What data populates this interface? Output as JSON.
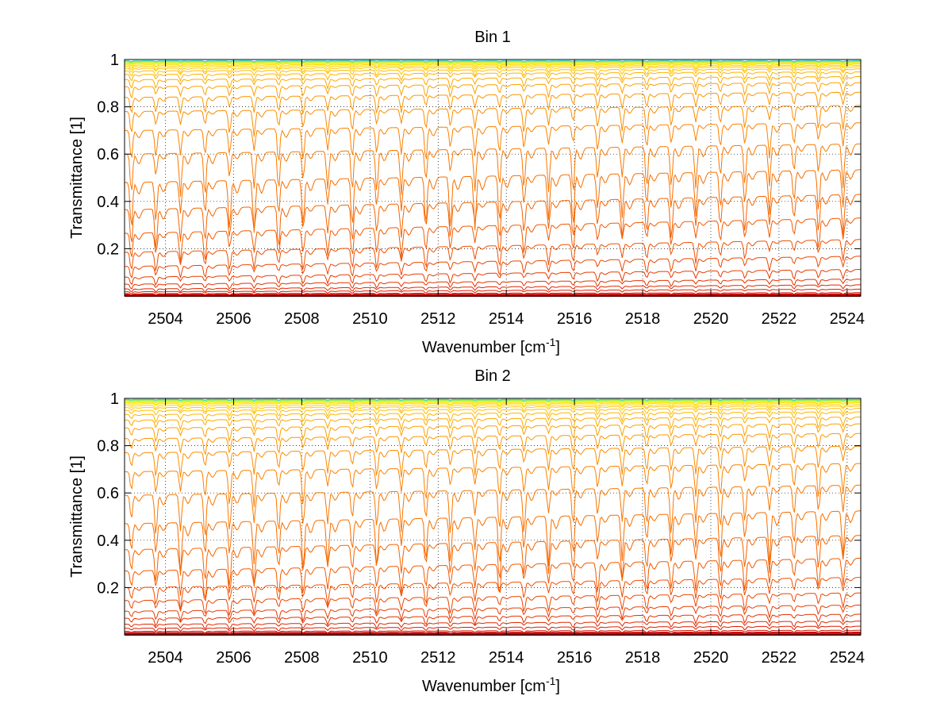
{
  "chart_data": [
    {
      "type": "line",
      "title": "Bin 1",
      "xlabel": "Wavenumber [cm",
      "xlabel_superscript": "-1",
      "xlabel_suffix": "]",
      "ylabel": "Transmittance [1]",
      "xlim": [
        2502.8,
        2524.4
      ],
      "ylim": [
        0,
        1
      ],
      "xticks": [
        2504,
        2506,
        2508,
        2510,
        2512,
        2514,
        2516,
        2518,
        2520,
        2522,
        2524
      ],
      "yticks": [
        0.2,
        0.4,
        0.6,
        0.8,
        1
      ],
      "ytick_labels": [
        "0.2",
        "0.4",
        "0.6",
        "0.8",
        "1"
      ],
      "grid": true,
      "line_spacing_cm": 0.72,
      "line_offset_cm": 2503.0,
      "series_baseline_values": [
        0.0,
        0.002,
        0.005,
        0.01,
        0.018,
        0.03,
        0.05,
        0.08,
        0.125,
        0.185,
        0.265,
        0.365,
        0.48,
        0.6,
        0.7,
        0.78,
        0.84,
        0.885,
        0.915,
        0.937,
        0.952,
        0.963,
        0.971,
        0.977,
        0.982,
        0.986,
        0.989,
        0.991,
        0.993,
        0.995
      ],
      "series_slope_per_cm": [
        0.0,
        0.0,
        0.0001,
        0.0002,
        0.0005,
        0.0008,
        0.001,
        0.0015,
        0.002,
        0.0025,
        0.003,
        0.003,
        0.0025,
        0.002,
        0.0015,
        0.0012,
        0.001,
        0.0008,
        0.0006,
        0.0005,
        0.0004,
        0.0003,
        0.0002,
        0.0002,
        0.0001,
        0.0001,
        0.0001,
        0.0,
        0.0,
        0.0
      ],
      "series_colors": [
        "#b30000",
        "#c00000",
        "#cc0000",
        "#d41000",
        "#dc1c00",
        "#e02800",
        "#e43200",
        "#e83c00",
        "#ec4600",
        "#ef5000",
        "#f25a00",
        "#f46400",
        "#f66e00",
        "#f87800",
        "#fa8200",
        "#fb8c00",
        "#fc9600",
        "#fda000",
        "#feaa00",
        "#ffb400",
        "#ffbe00",
        "#ffc800",
        "#ffd200",
        "#ffdc00",
        "#ffe600",
        "#f2ec10",
        "#d6ee30",
        "#aaf050",
        "#70ea90",
        "#30d8c8"
      ]
    },
    {
      "type": "line",
      "title": "Bin 2",
      "xlabel": "Wavenumber [cm",
      "xlabel_superscript": "-1",
      "xlabel_suffix": "]",
      "ylabel": "Transmittance [1]",
      "xlim": [
        2502.8,
        2524.4
      ],
      "ylim": [
        0,
        1
      ],
      "xticks": [
        2504,
        2506,
        2508,
        2510,
        2512,
        2514,
        2516,
        2518,
        2520,
        2522,
        2524
      ],
      "yticks": [
        0.2,
        0.4,
        0.6,
        0.8,
        1
      ],
      "ytick_labels": [
        "0.2",
        "0.4",
        "0.6",
        "0.8",
        "1"
      ],
      "grid": true,
      "line_spacing_cm": 0.72,
      "line_offset_cm": 2503.0,
      "series_baseline_values": [
        0.0,
        0.003,
        0.008,
        0.015,
        0.028,
        0.045,
        0.07,
        0.1,
        0.145,
        0.2,
        0.27,
        0.36,
        0.47,
        0.59,
        0.69,
        0.77,
        0.83,
        0.875,
        0.908,
        0.932,
        0.949,
        0.961,
        0.97,
        0.977,
        0.982,
        0.986,
        0.989,
        0.992,
        0.994,
        0.996
      ],
      "series_slope_per_cm": [
        0.0,
        0.0,
        0.0001,
        0.0002,
        0.0004,
        0.0006,
        0.0008,
        0.0012,
        0.0015,
        0.002,
        0.0025,
        0.0028,
        0.0025,
        0.002,
        0.0016,
        0.0013,
        0.001,
        0.0008,
        0.0006,
        0.0005,
        0.0004,
        0.0003,
        0.0002,
        0.0002,
        0.0001,
        0.0001,
        0.0001,
        0.0,
        0.0,
        0.0
      ],
      "series_colors": [
        "#b30000",
        "#c00000",
        "#cc0000",
        "#d41000",
        "#dc1c00",
        "#e02800",
        "#e43200",
        "#e83c00",
        "#ec4600",
        "#ef5000",
        "#f25a00",
        "#f46400",
        "#f66e00",
        "#f87800",
        "#fa8200",
        "#fb8c00",
        "#fc9600",
        "#fda000",
        "#feaa00",
        "#ffb400",
        "#ffbe00",
        "#ffc800",
        "#ffd200",
        "#ffdc00",
        "#ffe600",
        "#f2ec10",
        "#d6ee30",
        "#aaf050",
        "#70ea90",
        "#30d8c8"
      ]
    }
  ]
}
